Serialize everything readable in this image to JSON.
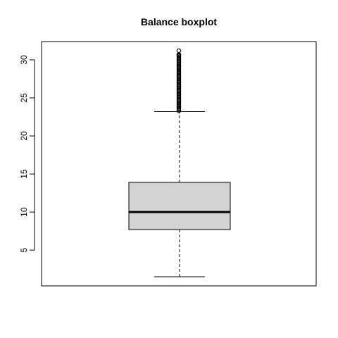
{
  "chart_data": {
    "type": "boxplot",
    "title": "Balance boxplot",
    "xlabel": "",
    "ylabel": "",
    "ylim": [
      0.3,
      32.4
    ],
    "yticks": [
      5,
      10,
      15,
      20,
      25,
      30
    ],
    "series": [
      {
        "whisker_low": 1.5,
        "q1": 7.7,
        "median": 10.0,
        "q3": 13.9,
        "whisker_high": 23.2,
        "outliers": [
          23.3,
          23.6,
          23.9,
          24.2,
          24.5,
          24.8,
          25.1,
          25.4,
          25.7,
          26.0,
          26.3,
          26.6,
          26.9,
          27.2,
          27.5,
          27.8,
          28.1,
          28.4,
          28.7,
          29.0,
          29.3,
          29.6,
          29.9,
          30.2,
          30.5,
          30.7,
          31.2
        ]
      }
    ],
    "box_fill": "#d3d3d3",
    "grid": false
  }
}
